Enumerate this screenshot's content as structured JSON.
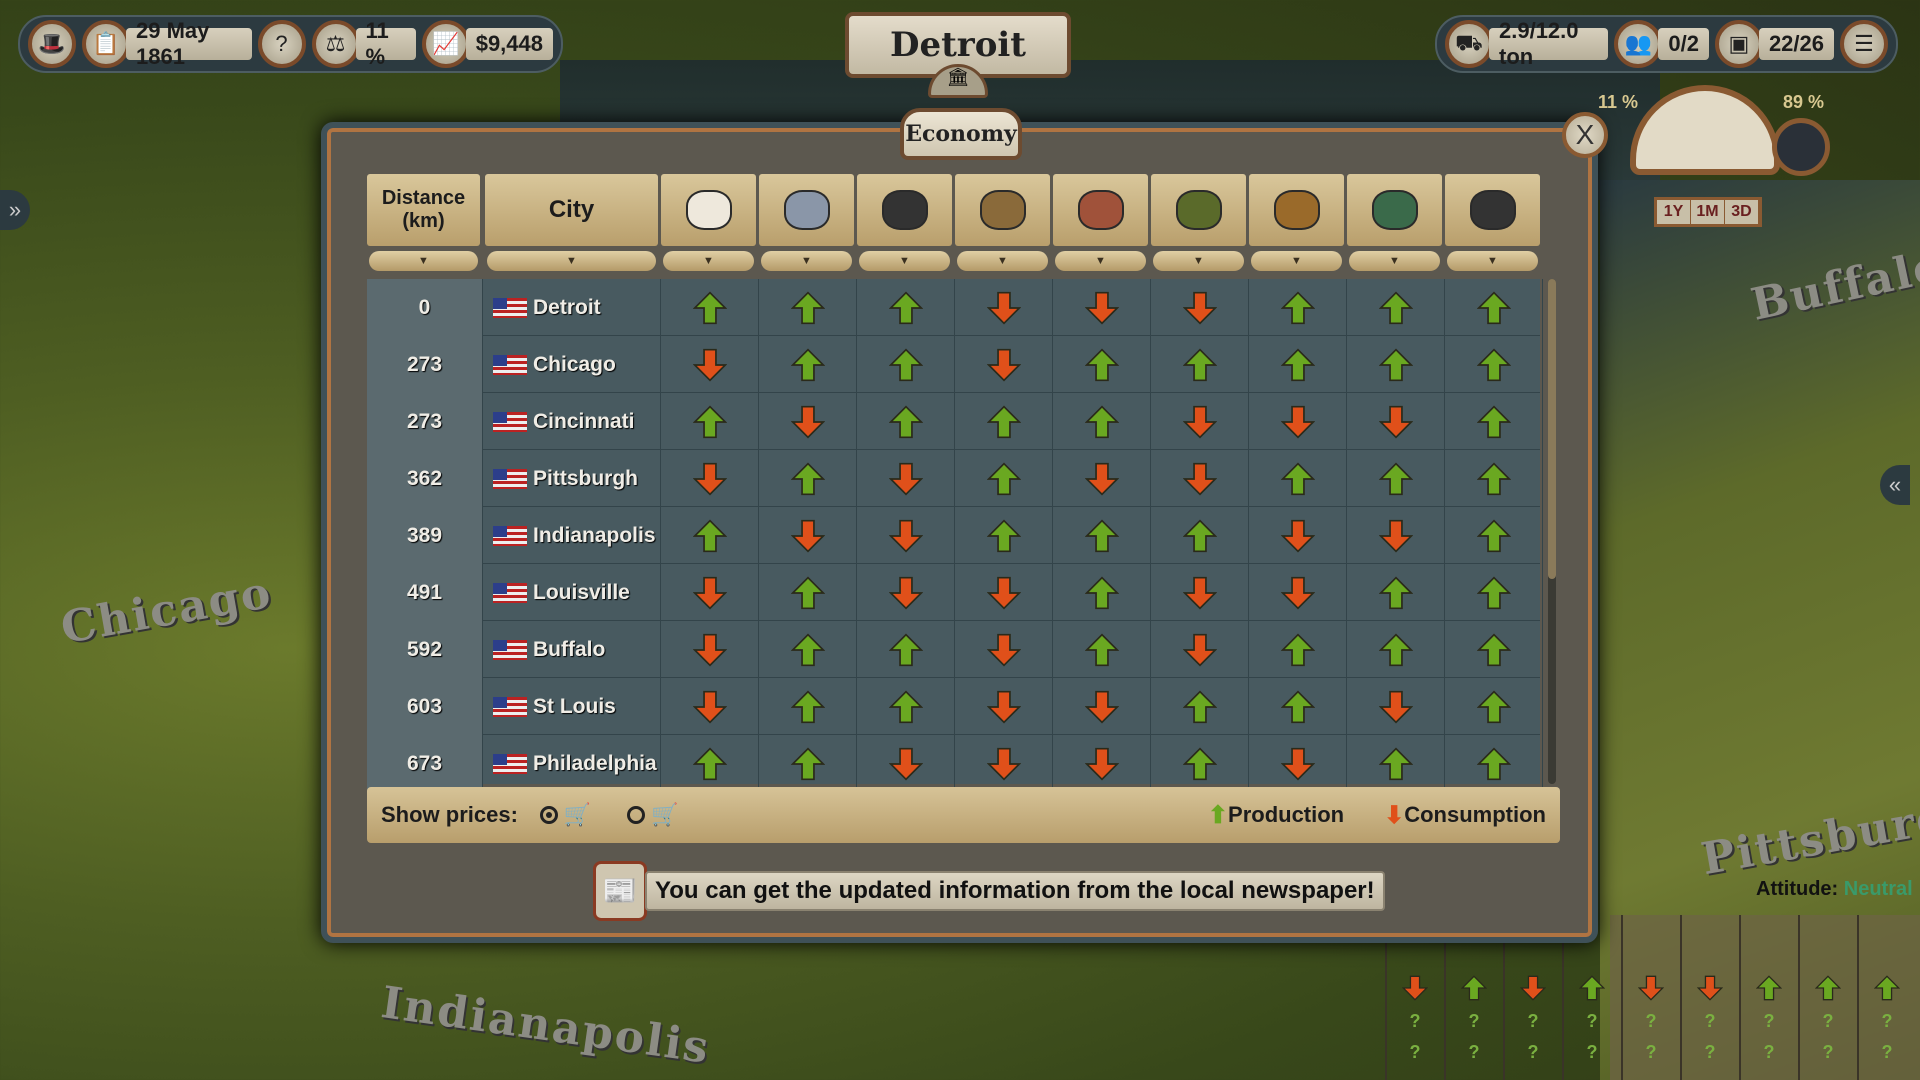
{
  "topbar": {
    "date": "29 May 1861",
    "tax": "11 %",
    "money": "$9,448",
    "cargo": "2.9/12.0 ton",
    "passengers": "0/2",
    "storage": "22/26",
    "icons": [
      "top-hat-icon",
      "ledger-icon",
      "quest-icon",
      "scales-icon",
      "chart-icon",
      "cargo-icon",
      "people-icon",
      "crate-icon",
      "menu-icon"
    ]
  },
  "city_title": "Detroit",
  "map_labels": [
    "Chicago",
    "Indianapolis",
    "Buffalo",
    "Pittsburgh"
  ],
  "dialog": {
    "tab": "Economy",
    "close": "X",
    "headers": {
      "distance": "Distance (km)",
      "city": "City"
    },
    "goods": [
      "cotton",
      "steel",
      "oil",
      "grain",
      "meat",
      "vegetables",
      "beer",
      "tools",
      "coal"
    ],
    "rows": [
      {
        "distance": "0",
        "city": "Detroit",
        "trend": "UUUDDDUUU"
      },
      {
        "distance": "273",
        "city": "Chicago",
        "trend": "DUUDUUUUU"
      },
      {
        "distance": "273",
        "city": "Cincinnati",
        "trend": "UDUUUDDDU"
      },
      {
        "distance": "362",
        "city": "Pittsburgh",
        "trend": "DUDUDDUUU"
      },
      {
        "distance": "389",
        "city": "Indianapolis",
        "trend": "UDDUUUDDU"
      },
      {
        "distance": "491",
        "city": "Louisville",
        "trend": "DUDDUDDUU"
      },
      {
        "distance": "592",
        "city": "Buffalo",
        "trend": "DUUDUDUUU"
      },
      {
        "distance": "603",
        "city": "St Louis",
        "trend": "DUUDDUUDU"
      },
      {
        "distance": "673",
        "city": "Philadelphia",
        "trend": "UUDDDUDUU"
      }
    ],
    "footer": {
      "show_prices": "Show prices:",
      "selected": "buy",
      "production": "Production",
      "consumption": "Consumption"
    },
    "news": "You can get the updated information from the local newspaper!"
  },
  "colors": {
    "up": "#6aa821",
    "down": "#e0501a"
  },
  "gauge": {
    "left_pct": "11 %",
    "right_pct": "89 %",
    "durations": [
      "1Y",
      "1M",
      "3D"
    ]
  },
  "side_panel": {
    "attitude_label": "Attitude:",
    "attitude_value": "Neutral",
    "trend": "DUDUDDUUU",
    "unknown": "?"
  }
}
